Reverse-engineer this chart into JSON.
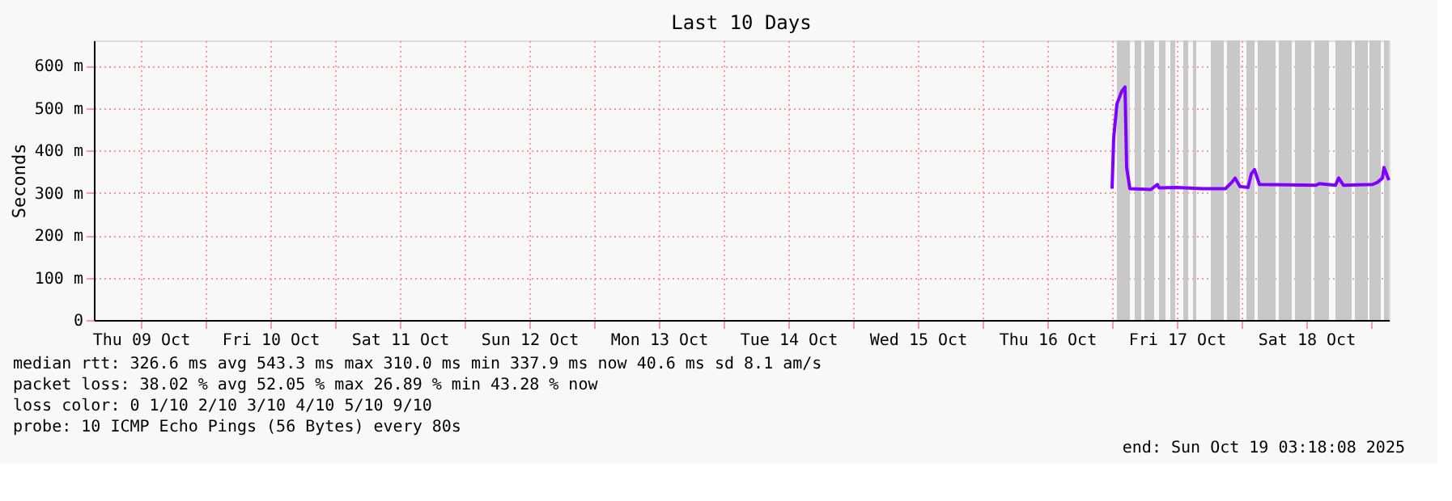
{
  "chart_data": {
    "type": "line",
    "title": "Last 10 Days",
    "ylabel": "Seconds",
    "x": [
      "2025-10-17T00:00",
      "2025-10-17T00:18",
      "2025-10-17T00:54",
      "2025-10-17T01:48",
      "2025-10-17T02:24",
      "2025-10-17T02:42",
      "2025-10-17T03:18",
      "2025-10-17T07:12",
      "2025-10-17T08:24",
      "2025-10-17T08:42",
      "2025-10-17T12:00",
      "2025-10-17T16:48",
      "2025-10-17T21:00",
      "2025-10-17T22:12",
      "2025-10-17T22:48",
      "2025-10-17T23:42",
      "2025-10-18T01:12",
      "2025-10-18T01:48",
      "2025-10-18T02:24",
      "2025-10-18T03:18",
      "2025-10-18T13:48",
      "2025-10-18T14:24",
      "2025-10-18T17:24",
      "2025-10-18T18:00",
      "2025-10-18T18:54",
      "2025-10-19T00:18",
      "2025-10-19T01:12",
      "2025-10-19T02:06",
      "2025-10-19T02:24",
      "2025-10-19T03:00",
      "2025-10-19T03:18"
    ],
    "series": [
      {
        "color": "#7f00ff",
        "values": [
          310,
          430,
          510,
          540,
          550,
          360,
          310,
          308,
          320,
          312,
          313,
          310,
          310,
          325,
          335,
          315,
          313,
          345,
          355,
          320,
          318,
          322,
          318,
          335,
          318,
          320,
          325,
          335,
          360,
          340,
          330
        ]
      }
    ],
    "xlim": [
      "2025-10-09T03:18",
      "2025-10-19T03:18"
    ],
    "xticks": [
      {
        "value": "2025-10-09T12:00",
        "label": "Thu 09 Oct"
      },
      {
        "value": "2025-10-10T00:00",
        "label": null
      },
      {
        "value": "2025-10-10T12:00",
        "label": "Fri 10 Oct"
      },
      {
        "value": "2025-10-11T00:00",
        "label": null
      },
      {
        "value": "2025-10-11T12:00",
        "label": "Sat 11 Oct"
      },
      {
        "value": "2025-10-12T00:00",
        "label": null
      },
      {
        "value": "2025-10-12T12:00",
        "label": "Sun 12 Oct"
      },
      {
        "value": "2025-10-13T00:00",
        "label": null
      },
      {
        "value": "2025-10-13T12:00",
        "label": "Mon 13 Oct"
      },
      {
        "value": "2025-10-14T00:00",
        "label": null
      },
      {
        "value": "2025-10-14T12:00",
        "label": "Tue 14 Oct"
      },
      {
        "value": "2025-10-15T00:00",
        "label": null
      },
      {
        "value": "2025-10-15T12:00",
        "label": "Wed 15 Oct"
      },
      {
        "value": "2025-10-16T00:00",
        "label": null
      },
      {
        "value": "2025-10-16T12:00",
        "label": "Thu 16 Oct"
      },
      {
        "value": "2025-10-17T00:00",
        "label": null
      },
      {
        "value": "2025-10-17T12:00",
        "label": "Fri 17 Oct"
      },
      {
        "value": "2025-10-18T00:00",
        "label": null
      },
      {
        "value": "2025-10-18T12:00",
        "label": "Sat 18 Oct"
      },
      {
        "value": "2025-10-19T00:00",
        "label": null
      }
    ],
    "ylim": [
      0,
      660
    ],
    "yticks": [
      0,
      {
        "value": 100,
        "label": "100 m"
      },
      {
        "value": 200,
        "label": "200 m"
      },
      {
        "value": 300,
        "label": "300 m"
      },
      {
        "value": 400,
        "label": "400 m"
      },
      {
        "value": 500,
        "label": "500 m"
      },
      {
        "value": 600,
        "label": "600 m"
      }
    ],
    "grid": true,
    "line_style": "solid",
    "bands": [
      {
        "axis": "x",
        "from": "2025-10-17T00:54",
        "to": "2025-10-17T03:18",
        "color": "#c8c8c8"
      },
      {
        "axis": "x",
        "from": "2025-10-17T04:12",
        "to": "2025-10-17T05:24",
        "color": "#c8c8c8"
      },
      {
        "axis": "x",
        "from": "2025-10-17T06:00",
        "to": "2025-10-17T07:48",
        "color": "#c8c8c8"
      },
      {
        "axis": "x",
        "from": "2025-10-17T08:42",
        "to": "2025-10-17T09:54",
        "color": "#c8c8c8"
      },
      {
        "axis": "x",
        "from": "2025-10-17T10:48",
        "to": "2025-10-17T11:42",
        "color": "#c8c8c8"
      },
      {
        "axis": "x",
        "from": "2025-10-17T13:12",
        "to": "2025-10-17T14:06",
        "color": "#c8c8c8"
      },
      {
        "axis": "x",
        "from": "2025-10-17T15:00",
        "to": "2025-10-17T15:36",
        "color": "#c8c8c8"
      },
      {
        "axis": "x",
        "from": "2025-10-17T18:18",
        "to": "2025-10-17T20:42",
        "color": "#c8c8c8"
      },
      {
        "axis": "x",
        "from": "2025-10-17T21:18",
        "to": "2025-10-17T23:42",
        "color": "#c8c8c8"
      },
      {
        "axis": "x",
        "from": "2025-10-18T00:54",
        "to": "2025-10-18T02:24",
        "color": "#c8c8c8"
      },
      {
        "axis": "x",
        "from": "2025-10-18T03:00",
        "to": "2025-10-18T06:18",
        "color": "#c8c8c8"
      },
      {
        "axis": "x",
        "from": "2025-10-18T06:54",
        "to": "2025-10-18T09:18",
        "color": "#c8c8c8"
      },
      {
        "axis": "x",
        "from": "2025-10-18T09:54",
        "to": "2025-10-18T12:54",
        "color": "#c8c8c8"
      },
      {
        "axis": "x",
        "from": "2025-10-18T13:30",
        "to": "2025-10-18T16:12",
        "color": "#c8c8c8"
      },
      {
        "axis": "x",
        "from": "2025-10-18T17:24",
        "to": "2025-10-18T20:24",
        "color": "#c8c8c8"
      },
      {
        "axis": "x",
        "from": "2025-10-18T21:00",
        "to": "2025-10-18T23:24",
        "color": "#c8c8c8"
      },
      {
        "axis": "x",
        "from": "2025-10-18T23:42",
        "to": "2025-10-19T01:48",
        "color": "#c8c8c8"
      },
      {
        "axis": "x",
        "from": "2025-10-19T02:24",
        "to": "2025-10-19T03:18",
        "color": "#c8c8c8"
      }
    ],
    "annotations": [
      "median rtt:  326.6 ms avg  543.3 ms max  310.0 ms min  337.9 ms now  40.6 ms sd  8.1   am/s",
      "packet loss: 38.02 % avg  52.05 % max  26.89 % min  43.28 % now",
      "loss color:  0  1/10  2/10  3/10  4/10  5/10  9/10",
      "probe:       10 ICMP Echo Pings (56 Bytes) every 80s",
      "end: Sun Oct 19 03:18:08 2025"
    ]
  }
}
